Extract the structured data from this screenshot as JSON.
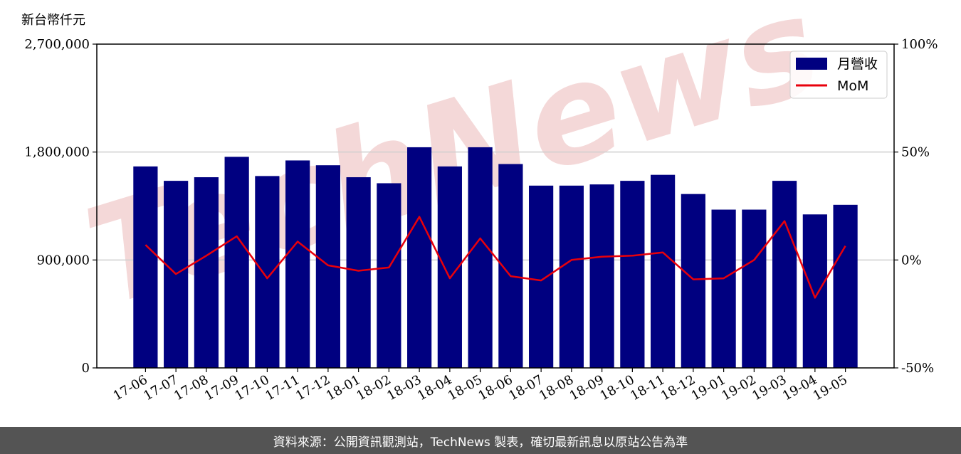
{
  "unit_label": "新台幣仟元",
  "watermark": "TechNews",
  "footer_text": "資料來源：公開資訊觀測站，TechNews 製表，確切最新訊息以原站公告為準",
  "colors": {
    "bar": "#000080",
    "line": "#e8000b",
    "grid": "#cfcfcf",
    "watermark": "#f4d8d8",
    "footer_bg": "#545454"
  },
  "chart_data": {
    "type": "bar",
    "categories": [
      "17-06",
      "17-07",
      "17-08",
      "17-09",
      "17-10",
      "17-11",
      "17-12",
      "18-01",
      "18-02",
      "18-03",
      "18-04",
      "18-05",
      "18-06",
      "18-07",
      "18-08",
      "18-09",
      "18-10",
      "18-11",
      "18-12",
      "19-01",
      "19-02",
      "19-03",
      "19-04",
      "19-05"
    ],
    "y_ticks": [
      "0",
      "900,000",
      "1,800,000",
      "2,700,000"
    ],
    "y_tick_values": [
      0,
      900000,
      1800000,
      2700000
    ],
    "y2_ticks": [
      "-50%",
      "0%",
      "50%",
      "100%"
    ],
    "y2_tick_values": [
      -50,
      0,
      50,
      100
    ],
    "ylim": [
      0,
      2700000
    ],
    "y2lim": [
      -50,
      100
    ],
    "grid": true,
    "legend_position": "top-right",
    "series": [
      {
        "name": "月營收",
        "type": "bar",
        "axis": "left",
        "values": [
          1680000,
          1560000,
          1590000,
          1760000,
          1600000,
          1730000,
          1690000,
          1590000,
          1540000,
          1840000,
          1680000,
          1840000,
          1700000,
          1520000,
          1520000,
          1530000,
          1560000,
          1610000,
          1450000,
          1320000,
          1320000,
          1560000,
          1280000,
          1360000
        ]
      },
      {
        "name": "MoM",
        "type": "line",
        "axis": "right",
        "values": [
          7,
          -6.5,
          2,
          11,
          -8.5,
          8.5,
          -2.5,
          -5,
          -3.5,
          20,
          -8.5,
          10,
          -7.5,
          -9.5,
          0,
          1.5,
          2,
          3.5,
          -9,
          -8.5,
          0,
          18,
          -17.5,
          6.5
        ]
      }
    ]
  }
}
